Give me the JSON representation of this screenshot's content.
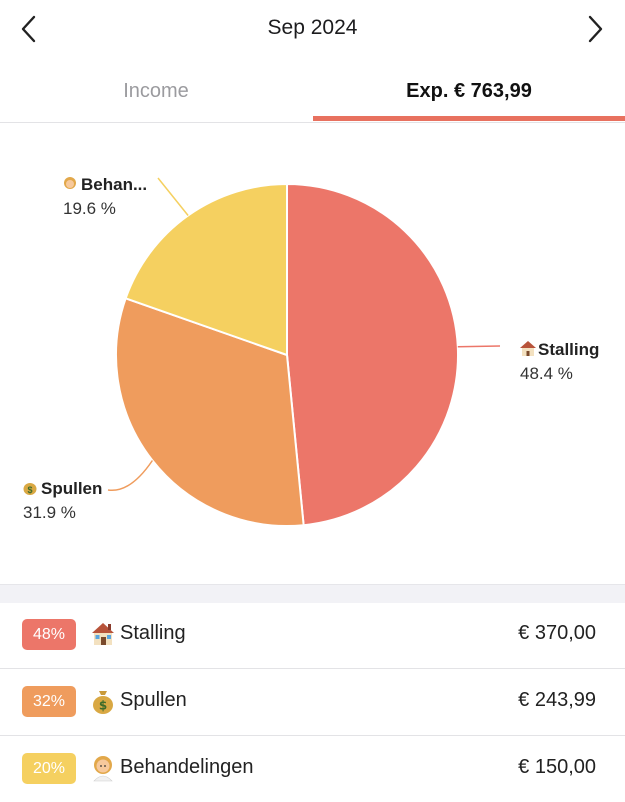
{
  "header": {
    "month": "Sep 2024"
  },
  "tabs": {
    "income": "Income",
    "expense": "Exp. € 763,99"
  },
  "colors": {
    "accent": "#e8715f",
    "stalling": "#ec7669",
    "spullen": "#ef9c5d",
    "behandelingen": "#f5d060"
  },
  "chart_data": {
    "type": "pie",
    "slices": [
      {
        "key": "stalling",
        "label": "Stalling",
        "display_label": "Stalling",
        "icon": "house-icon",
        "percent": 48.4,
        "percent_label": "48.4 %",
        "color": "#ec7669"
      },
      {
        "key": "spullen",
        "label": "Spullen",
        "display_label": "Spullen",
        "icon": "money-bag-icon",
        "percent": 31.9,
        "percent_label": "31.9 %",
        "color": "#ef9c5d"
      },
      {
        "key": "behandelingen",
        "label": "Behandelingen",
        "display_label": "Behan...",
        "icon": "person-icon",
        "percent": 19.6,
        "percent_label": "19.6 %",
        "color": "#f5d060"
      }
    ]
  },
  "list": [
    {
      "badge": "48%",
      "label": "Stalling",
      "amount": "€ 370,00",
      "icon": "house-icon",
      "color": "#ec7669"
    },
    {
      "badge": "32%",
      "label": "Spullen",
      "amount": "€ 243,99",
      "icon": "money-bag-icon",
      "color": "#ef9c5d"
    },
    {
      "badge": "20%",
      "label": "Behandelingen",
      "amount": "€ 150,00",
      "icon": "person-icon",
      "color": "#f5d060"
    }
  ]
}
